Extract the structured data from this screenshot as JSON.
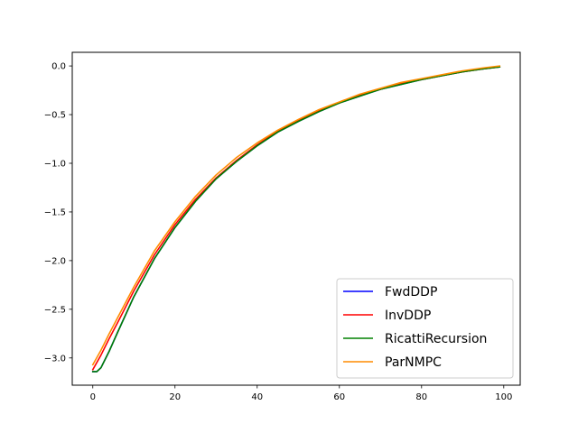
{
  "chart_data": {
    "type": "line",
    "title": "",
    "xlabel": "",
    "ylabel": "",
    "xlim": [
      -5,
      104
    ],
    "ylim": [
      -3.28,
      0.14
    ],
    "xticks": [
      0,
      20,
      40,
      60,
      80,
      100
    ],
    "xtick_labels": [
      "0",
      "20",
      "40",
      "60",
      "80",
      "100"
    ],
    "yticks": [
      0.0,
      -0.5,
      -1.0,
      -1.5,
      -2.0,
      -2.5,
      -3.0
    ],
    "ytick_labels": [
      "0.0",
      "−0.5",
      "−1.0",
      "−1.5",
      "−2.0",
      "−2.5",
      "−3.0"
    ],
    "grid": false,
    "legend_position": "lower-right",
    "series": [
      {
        "name": "FwdDDP",
        "color": "#0000ff",
        "points": [
          [
            0,
            -3.14
          ],
          [
            1,
            -3.14
          ],
          [
            2,
            -3.1
          ],
          [
            4,
            -2.93
          ],
          [
            6,
            -2.74
          ],
          [
            10,
            -2.37
          ],
          [
            15,
            -1.98
          ],
          [
            20,
            -1.66
          ],
          [
            25,
            -1.39
          ],
          [
            30,
            -1.16
          ],
          [
            35,
            -0.98
          ],
          [
            40,
            -0.82
          ],
          [
            45,
            -0.68
          ],
          [
            50,
            -0.57
          ],
          [
            55,
            -0.47
          ],
          [
            60,
            -0.38
          ],
          [
            65,
            -0.31
          ],
          [
            70,
            -0.24
          ],
          [
            75,
            -0.19
          ],
          [
            80,
            -0.14
          ],
          [
            85,
            -0.1
          ],
          [
            90,
            -0.06
          ],
          [
            95,
            -0.03
          ],
          [
            99,
            -0.01
          ]
        ]
      },
      {
        "name": "InvDDP",
        "color": "#ff0000",
        "points": [
          [
            0,
            -3.12
          ],
          [
            2,
            -2.97
          ],
          [
            4,
            -2.8
          ],
          [
            6,
            -2.64
          ],
          [
            10,
            -2.31
          ],
          [
            15,
            -1.94
          ],
          [
            20,
            -1.63
          ],
          [
            25,
            -1.37
          ],
          [
            30,
            -1.15
          ],
          [
            35,
            -0.97
          ],
          [
            40,
            -0.81
          ],
          [
            45,
            -0.67
          ],
          [
            50,
            -0.56
          ],
          [
            55,
            -0.46
          ],
          [
            60,
            -0.38
          ],
          [
            65,
            -0.3
          ],
          [
            70,
            -0.24
          ],
          [
            75,
            -0.18
          ],
          [
            80,
            -0.14
          ],
          [
            85,
            -0.1
          ],
          [
            90,
            -0.06
          ],
          [
            95,
            -0.03
          ],
          [
            99,
            -0.01
          ]
        ]
      },
      {
        "name": "RicattiRecursion",
        "color": "#008000",
        "points": [
          [
            0,
            -3.14
          ],
          [
            1,
            -3.14
          ],
          [
            2,
            -3.1
          ],
          [
            4,
            -2.93
          ],
          [
            6,
            -2.74
          ],
          [
            10,
            -2.37
          ],
          [
            15,
            -1.98
          ],
          [
            20,
            -1.66
          ],
          [
            25,
            -1.39
          ],
          [
            30,
            -1.16
          ],
          [
            35,
            -0.98
          ],
          [
            40,
            -0.82
          ],
          [
            45,
            -0.68
          ],
          [
            50,
            -0.57
          ],
          [
            55,
            -0.47
          ],
          [
            60,
            -0.38
          ],
          [
            65,
            -0.31
          ],
          [
            70,
            -0.24
          ],
          [
            75,
            -0.19
          ],
          [
            80,
            -0.14
          ],
          [
            85,
            -0.1
          ],
          [
            90,
            -0.06
          ],
          [
            95,
            -0.03
          ],
          [
            99,
            -0.01
          ]
        ]
      },
      {
        "name": "ParNMPC",
        "color": "#ff8c00",
        "points": [
          [
            0,
            -3.07
          ],
          [
            2,
            -2.92
          ],
          [
            4,
            -2.75
          ],
          [
            6,
            -2.59
          ],
          [
            10,
            -2.27
          ],
          [
            15,
            -1.9
          ],
          [
            20,
            -1.6
          ],
          [
            25,
            -1.34
          ],
          [
            30,
            -1.12
          ],
          [
            35,
            -0.94
          ],
          [
            40,
            -0.79
          ],
          [
            45,
            -0.66
          ],
          [
            50,
            -0.55
          ],
          [
            55,
            -0.45
          ],
          [
            60,
            -0.37
          ],
          [
            65,
            -0.29
          ],
          [
            70,
            -0.23
          ],
          [
            75,
            -0.17
          ],
          [
            80,
            -0.13
          ],
          [
            85,
            -0.09
          ],
          [
            90,
            -0.05
          ],
          [
            95,
            -0.02
          ],
          [
            99,
            0.0
          ]
        ]
      }
    ]
  }
}
